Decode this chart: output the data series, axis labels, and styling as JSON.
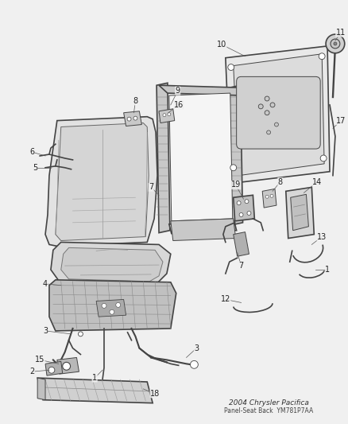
{
  "title": "2004 Chrysler Pacifica",
  "subtitle": "Panel-Seat Back",
  "part_number": "YM781P7AA",
  "bg_color": "#f0f0f0",
  "line_color": "#444444",
  "label_color": "#222222",
  "fig_width": 4.38,
  "fig_height": 5.33,
  "dpi": 100,
  "gray_fill": "#c8c8c8",
  "dark_fill": "#888888",
  "light_fill": "#e0e0e0",
  "white_fill": "#ffffff"
}
